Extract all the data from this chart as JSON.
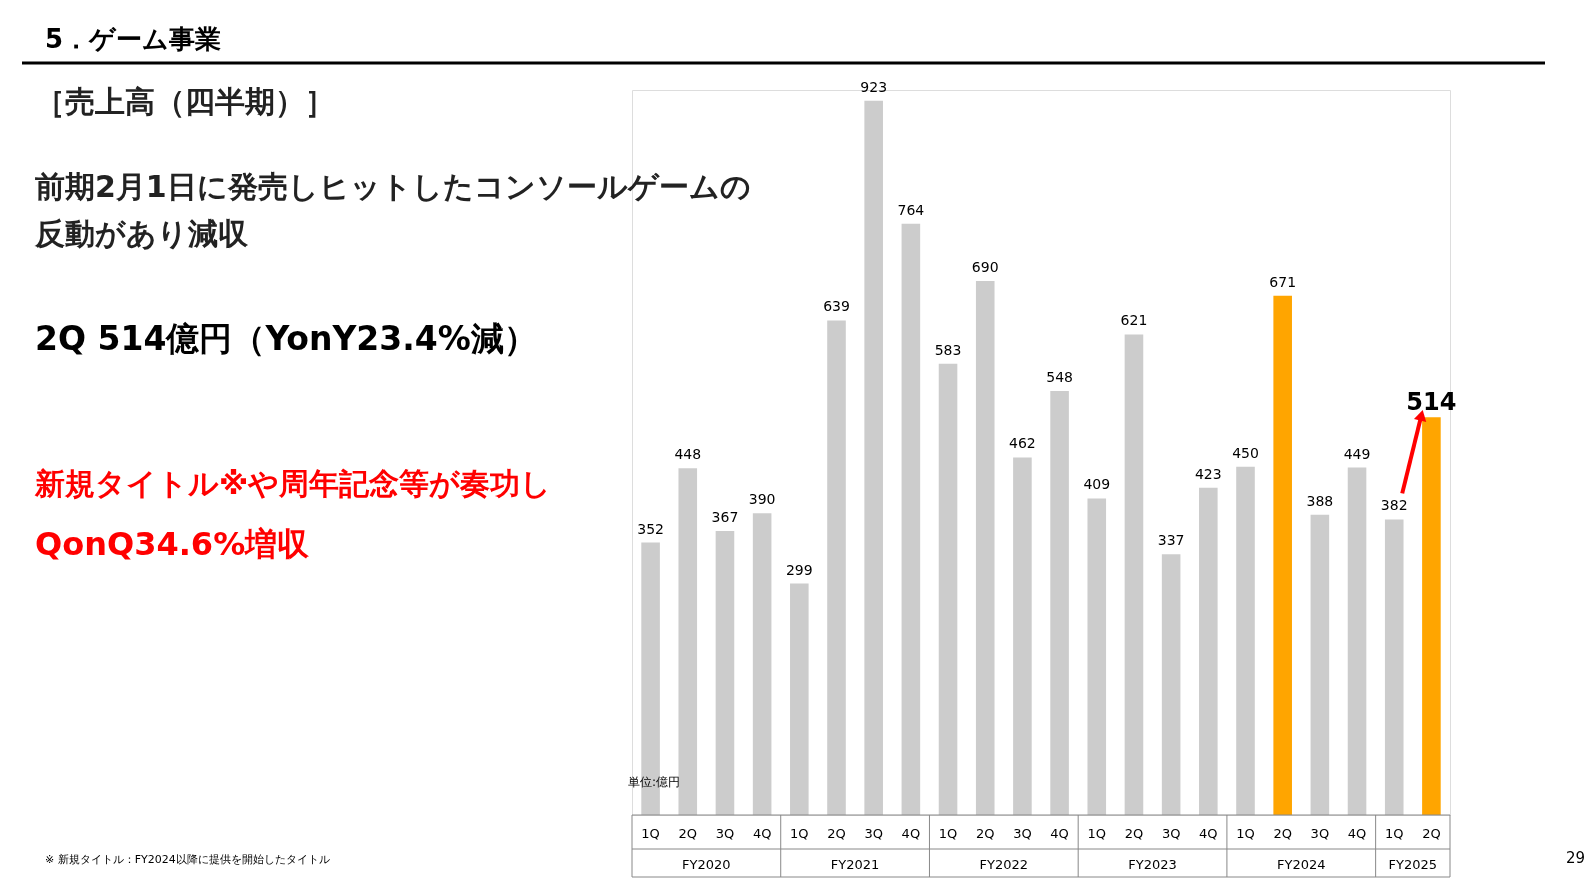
{
  "chart_data": {
    "type": "bar",
    "title": "5．ゲーム事業",
    "subtitle": "［売上高（四半期）］",
    "categories": [
      "1Q",
      "2Q",
      "3Q",
      "4Q",
      "1Q",
      "2Q",
      "3Q",
      "4Q",
      "1Q",
      "2Q",
      "3Q",
      "4Q",
      "1Q",
      "2Q",
      "3Q",
      "4Q",
      "1Q",
      "2Q",
      "3Q",
      "4Q",
      "1Q",
      "2Q"
    ],
    "values": [
      352,
      448,
      367,
      390,
      299,
      639,
      923,
      764,
      583,
      690,
      462,
      548,
      409,
      621,
      337,
      423,
      450,
      671,
      388,
      449,
      382,
      514
    ],
    "colors": [
      "#cccccc",
      "#cccccc",
      "#cccccc",
      "#cccccc",
      "#cccccc",
      "#cccccc",
      "#cccccc",
      "#cccccc",
      "#cccccc",
      "#cccccc",
      "#cccccc",
      "#cccccc",
      "#cccccc",
      "#cccccc",
      "#cccccc",
      "#cccccc",
      "#cccccc",
      "#ffa500",
      "#cccccc",
      "#cccccc",
      "#cccccc",
      "#ffa500"
    ],
    "data_labels": true,
    "annotations": [
      "前期2月1日に発売しヒットしたコンソールゲームの",
      "反動があり減収",
      "2Q 514億円（YonY23.4%減）",
      "新規タイトル※や周年記念等が奏功し",
      "QonQ34.6%増収",
      "単位:億円",
      "※ 新規タイトル：FY2024以降に提供を開始したタイトル",
      "29",
      "FY2020",
      "FY2021",
      "FY2022",
      "FY2023",
      "FY2024",
      "FY2025"
    ]
  }
}
